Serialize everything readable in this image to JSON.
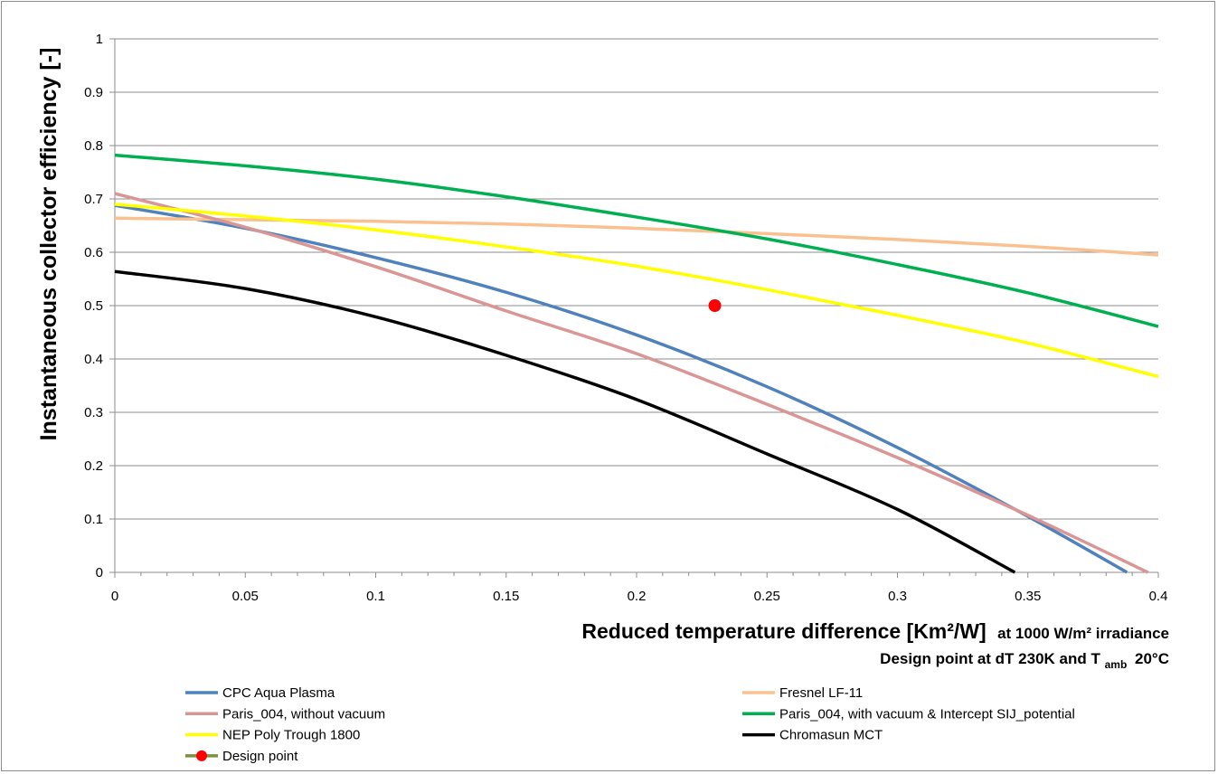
{
  "chart_data": {
    "type": "line",
    "ylabel": "Instantaneous collector efficiency [-]",
    "xlabel": "Reduced temperature difference [Km²/W]",
    "xlabel_suffix": "at 1000 W/m² irradiance",
    "subtitle_prefix": "Design point at dT 230K and T",
    "subtitle_sub": "amb",
    "subtitle_suffix": "20°C",
    "xlim": [
      0,
      0.4
    ],
    "ylim": [
      0,
      1
    ],
    "grid": "horizontal",
    "legend_position": "bottom",
    "x_ticks": [
      "0",
      "0.05",
      "0.1",
      "0.15",
      "0.2",
      "0.25",
      "0.3",
      "0.35",
      "0.4"
    ],
    "y_ticks": [
      "0",
      "0.1",
      "0.2",
      "0.3",
      "0.4",
      "0.5",
      "0.6",
      "0.7",
      "0.8",
      "0.9",
      "1"
    ],
    "series": [
      {
        "name": "CPC Aqua Plasma",
        "color": "#4f81bd",
        "points": [
          [
            0,
            0.688
          ],
          [
            0.05,
            0.645
          ],
          [
            0.1,
            0.59
          ],
          [
            0.15,
            0.525
          ],
          [
            0.2,
            0.445
          ],
          [
            0.25,
            0.348
          ],
          [
            0.3,
            0.234
          ],
          [
            0.35,
            0.105
          ],
          [
            0.388,
            0
          ]
        ]
      },
      {
        "name": "Fresnel LF-11",
        "color": "#fac090",
        "points": [
          [
            0,
            0.664
          ],
          [
            0.05,
            0.661
          ],
          [
            0.1,
            0.658
          ],
          [
            0.15,
            0.653
          ],
          [
            0.2,
            0.645
          ],
          [
            0.25,
            0.635
          ],
          [
            0.3,
            0.624
          ],
          [
            0.35,
            0.611
          ],
          [
            0.4,
            0.595
          ]
        ]
      },
      {
        "name": "Paris_004, without vacuum",
        "color": "#d99694",
        "points": [
          [
            0,
            0.71
          ],
          [
            0.05,
            0.647
          ],
          [
            0.1,
            0.573
          ],
          [
            0.15,
            0.49
          ],
          [
            0.2,
            0.41
          ],
          [
            0.25,
            0.315
          ],
          [
            0.3,
            0.215
          ],
          [
            0.35,
            0.107
          ],
          [
            0.396,
            0
          ]
        ]
      },
      {
        "name": "Paris_004, with vacuum & Intercept SIJ_potential",
        "color": "#00b050",
        "points": [
          [
            0,
            0.782
          ],
          [
            0.05,
            0.762
          ],
          [
            0.1,
            0.737
          ],
          [
            0.15,
            0.704
          ],
          [
            0.2,
            0.666
          ],
          [
            0.25,
            0.625
          ],
          [
            0.3,
            0.577
          ],
          [
            0.35,
            0.524
          ],
          [
            0.4,
            0.461
          ]
        ]
      },
      {
        "name": "NEP Poly Trough 1800",
        "color": "#ffff00",
        "points": [
          [
            0,
            0.69
          ],
          [
            0.05,
            0.668
          ],
          [
            0.1,
            0.642
          ],
          [
            0.15,
            0.61
          ],
          [
            0.2,
            0.574
          ],
          [
            0.25,
            0.53
          ],
          [
            0.3,
            0.482
          ],
          [
            0.35,
            0.43
          ],
          [
            0.4,
            0.367
          ]
        ]
      },
      {
        "name": "Chromasun MCT",
        "color": "#000000",
        "points": [
          [
            0,
            0.564
          ],
          [
            0.05,
            0.532
          ],
          [
            0.1,
            0.479
          ],
          [
            0.15,
            0.407
          ],
          [
            0.2,
            0.324
          ],
          [
            0.25,
            0.222
          ],
          [
            0.3,
            0.118
          ],
          [
            0.345,
            0
          ]
        ]
      }
    ],
    "design_point": {
      "name": "Design point",
      "color": "#ff0000",
      "marker_line_color": "#77933c",
      "x": 0.23,
      "y": 0.5
    },
    "legend_order": [
      {
        "ref": "series.0"
      },
      {
        "ref": "series.1"
      },
      {
        "ref": "series.2"
      },
      {
        "ref": "series.3"
      },
      {
        "ref": "series.4"
      },
      {
        "ref": "series.5"
      },
      {
        "ref": "design_point"
      }
    ]
  }
}
